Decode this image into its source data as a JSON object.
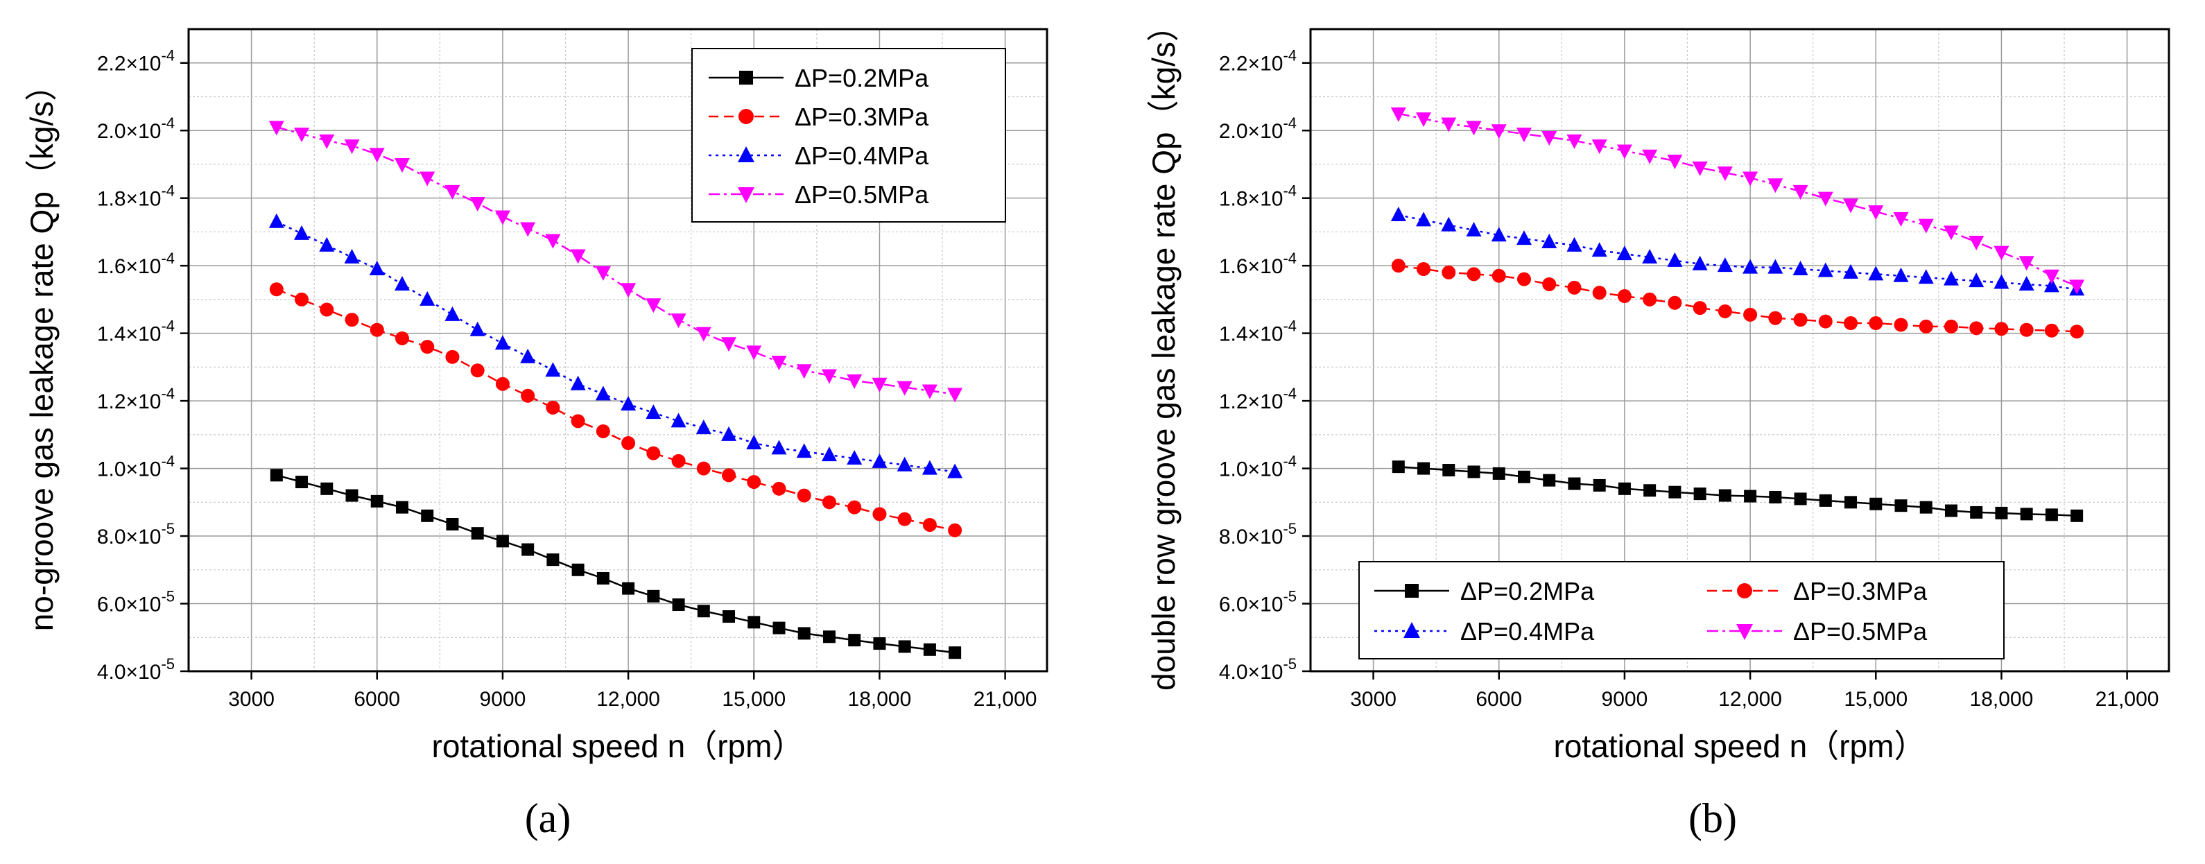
{
  "chart_data": [
    {
      "type": "line",
      "panel_label": "(a)",
      "xlabel": "rotational speed n（rpm）",
      "ylabel": "no-groove gas leakage rate Qp（kg/s）",
      "xlim": [
        1500,
        22000
      ],
      "ylim": [
        4e-05,
        0.00023
      ],
      "x_ticks": [
        3000,
        6000,
        9000,
        12000,
        15000,
        18000,
        21000
      ],
      "x_tick_labels": [
        "3000",
        "6000",
        "9000",
        "12,000",
        "15,000",
        "18,000",
        "21,000"
      ],
      "y_ticks": [
        4e-05,
        6e-05,
        8e-05,
        0.0001,
        0.00012,
        0.00014,
        0.00016,
        0.00018,
        0.0002,
        0.00022
      ],
      "y_tick_labels": [
        {
          "m": "4.0×10",
          "e": "-5"
        },
        {
          "m": "6.0×10",
          "e": "-5"
        },
        {
          "m": "8.0×10",
          "e": "-5"
        },
        {
          "m": "1.0×10",
          "e": "-4"
        },
        {
          "m": "1.2×10",
          "e": "-4"
        },
        {
          "m": "1.4×10",
          "e": "-4"
        },
        {
          "m": "1.6×10",
          "e": "-4"
        },
        {
          "m": "1.8×10",
          "e": "-4"
        },
        {
          "m": "2.0×10",
          "e": "-4"
        },
        {
          "m": "2.2×10",
          "e": "-4"
        }
      ],
      "grid": true,
      "legend_position": "top-right",
      "legend_columns": 1,
      "x": [
        3600,
        4200,
        4800,
        5400,
        6000,
        6600,
        7200,
        7800,
        8400,
        9000,
        9600,
        10200,
        10800,
        11400,
        12000,
        12600,
        13200,
        13800,
        14400,
        15000,
        15600,
        16200,
        16800,
        17400,
        18000,
        18600,
        19200,
        19800
      ],
      "series": [
        {
          "name": "ΔP=0.2MPa",
          "color": "#000000",
          "marker": "square",
          "dash": "solid",
          "values": [
            9.8e-05,
            9.6e-05,
            9.4e-05,
            9.2e-05,
            9.03e-05,
            8.85e-05,
            8.6e-05,
            8.35e-05,
            8.08e-05,
            7.85e-05,
            7.6e-05,
            7.3e-05,
            7e-05,
            6.75e-05,
            6.45e-05,
            6.22e-05,
            5.97e-05,
            5.78e-05,
            5.62e-05,
            5.45e-05,
            5.28e-05,
            5.12e-05,
            5.02e-05,
            4.92e-05,
            4.82e-05,
            4.73e-05,
            4.64e-05,
            4.55e-05
          ]
        },
        {
          "name": "ΔP=0.3MPa",
          "color": "#ff0000",
          "marker": "circle",
          "dash": "dashed",
          "values": [
            0.000153,
            0.00015,
            0.000147,
            0.000144,
            0.000141,
            0.0001385,
            0.000136,
            0.000133,
            0.000129,
            0.000125,
            0.0001215,
            0.000118,
            0.000114,
            0.000111,
            0.0001075,
            0.0001045,
            0.0001022,
            0.0001,
            9.8e-05,
            9.6e-05,
            9.4e-05,
            9.2e-05,
            9e-05,
            8.85e-05,
            8.65e-05,
            8.5e-05,
            8.33e-05,
            8.17e-05
          ]
        },
        {
          "name": "ΔP=0.4MPa",
          "color": "#0000ff",
          "marker": "triangle-up",
          "dash": "dotted",
          "values": [
            0.000173,
            0.0001695,
            0.000166,
            0.0001625,
            0.000159,
            0.0001545,
            0.00015,
            0.0001455,
            0.000141,
            0.000137,
            0.000133,
            0.000129,
            0.000125,
            0.000122,
            0.000119,
            0.0001165,
            0.000114,
            0.000112,
            0.00011,
            0.0001075,
            0.000106,
            0.000105,
            0.000104,
            0.000103,
            0.000102,
            0.000101,
            0.0001,
            9.9e-05
          ]
        },
        {
          "name": "ΔP=0.5MPa",
          "color": "#ff00ff",
          "marker": "triangle-down",
          "dash": "dashdot",
          "values": [
            0.000201,
            0.000199,
            0.000197,
            0.0001955,
            0.000193,
            0.00019,
            0.000186,
            0.000182,
            0.0001785,
            0.0001745,
            0.000171,
            0.0001675,
            0.000163,
            0.000158,
            0.000153,
            0.0001485,
            0.000144,
            0.00014,
            0.000137,
            0.0001345,
            0.0001315,
            0.000129,
            0.0001275,
            0.000126,
            0.000125,
            0.000124,
            0.000123,
            0.000122
          ]
        }
      ]
    },
    {
      "type": "line",
      "panel_label": "(b)",
      "xlabel": "rotational speed n（rpm）",
      "ylabel": "double row groove gas leakage rate Qp（kg/s）",
      "xlim": [
        1500,
        22000
      ],
      "ylim": [
        4e-05,
        0.00023
      ],
      "x_ticks": [
        3000,
        6000,
        9000,
        12000,
        15000,
        18000,
        21000
      ],
      "x_tick_labels": [
        "3000",
        "6000",
        "9000",
        "12,000",
        "15,000",
        "18,000",
        "21,000"
      ],
      "y_ticks": [
        4e-05,
        6e-05,
        8e-05,
        0.0001,
        0.00012,
        0.00014,
        0.00016,
        0.00018,
        0.0002,
        0.00022
      ],
      "y_tick_labels": [
        {
          "m": "4.0×10",
          "e": "-5"
        },
        {
          "m": "6.0×10",
          "e": "-5"
        },
        {
          "m": "8.0×10",
          "e": "-5"
        },
        {
          "m": "1.0×10",
          "e": "-4"
        },
        {
          "m": "1.2×10",
          "e": "-4"
        },
        {
          "m": "1.4×10",
          "e": "-4"
        },
        {
          "m": "1.6×10",
          "e": "-4"
        },
        {
          "m": "1.8×10",
          "e": "-4"
        },
        {
          "m": "2.0×10",
          "e": "-4"
        },
        {
          "m": "2.2×10",
          "e": "-4"
        }
      ],
      "grid": true,
      "legend_position": "bottom-left",
      "legend_columns": 2,
      "x": [
        3600,
        4200,
        4800,
        5400,
        6000,
        6600,
        7200,
        7800,
        8400,
        9000,
        9600,
        10200,
        10800,
        11400,
        12000,
        12600,
        13200,
        13800,
        14400,
        15000,
        15600,
        16200,
        16800,
        17400,
        18000,
        18600,
        19200,
        19800
      ],
      "series": [
        {
          "name": "ΔP=0.2MPa",
          "color": "#000000",
          "marker": "square",
          "dash": "solid",
          "values": [
            0.0001005,
            0.0001,
            9.95e-05,
            9.9e-05,
            9.85e-05,
            9.75e-05,
            9.65e-05,
            9.55e-05,
            9.5e-05,
            9.4e-05,
            9.35e-05,
            9.3e-05,
            9.25e-05,
            9.2e-05,
            9.18e-05,
            9.15e-05,
            9.1e-05,
            9.05e-05,
            9e-05,
            8.95e-05,
            8.9e-05,
            8.85e-05,
            8.75e-05,
            8.7e-05,
            8.68e-05,
            8.65e-05,
            8.63e-05,
            8.6e-05
          ]
        },
        {
          "name": "ΔP=0.3MPa",
          "color": "#ff0000",
          "marker": "circle",
          "dash": "dashed",
          "values": [
            0.00016,
            0.000159,
            0.000158,
            0.0001575,
            0.000157,
            0.000156,
            0.0001545,
            0.0001535,
            0.000152,
            0.000151,
            0.00015,
            0.000149,
            0.0001475,
            0.0001465,
            0.0001455,
            0.0001445,
            0.000144,
            0.0001435,
            0.000143,
            0.000143,
            0.0001425,
            0.000142,
            0.000142,
            0.0001415,
            0.0001413,
            0.000141,
            0.0001408,
            0.0001405
          ]
        },
        {
          "name": "ΔP=0.4MPa",
          "color": "#0000ff",
          "marker": "triangle-up",
          "dash": "dotted",
          "values": [
            0.000175,
            0.0001735,
            0.000172,
            0.0001705,
            0.000169,
            0.000168,
            0.000167,
            0.000166,
            0.0001645,
            0.0001635,
            0.0001625,
            0.0001615,
            0.0001605,
            0.00016,
            0.0001595,
            0.0001595,
            0.000159,
            0.0001585,
            0.000158,
            0.0001575,
            0.000157,
            0.0001565,
            0.000156,
            0.0001555,
            0.000155,
            0.0001545,
            0.000154,
            0.000153
          ]
        },
        {
          "name": "ΔP=0.5MPa",
          "color": "#ff00ff",
          "marker": "triangle-down",
          "dash": "dashdot",
          "values": [
            0.000205,
            0.0002035,
            0.000202,
            0.000201,
            0.0002,
            0.000199,
            0.000198,
            0.000197,
            0.0001955,
            0.000194,
            0.0001925,
            0.000191,
            0.000189,
            0.0001875,
            0.000186,
            0.000184,
            0.000182,
            0.00018,
            0.000178,
            0.000176,
            0.000174,
            0.000172,
            0.00017,
            0.000167,
            0.000164,
            0.000161,
            0.000157,
            0.000154
          ]
        }
      ]
    }
  ]
}
